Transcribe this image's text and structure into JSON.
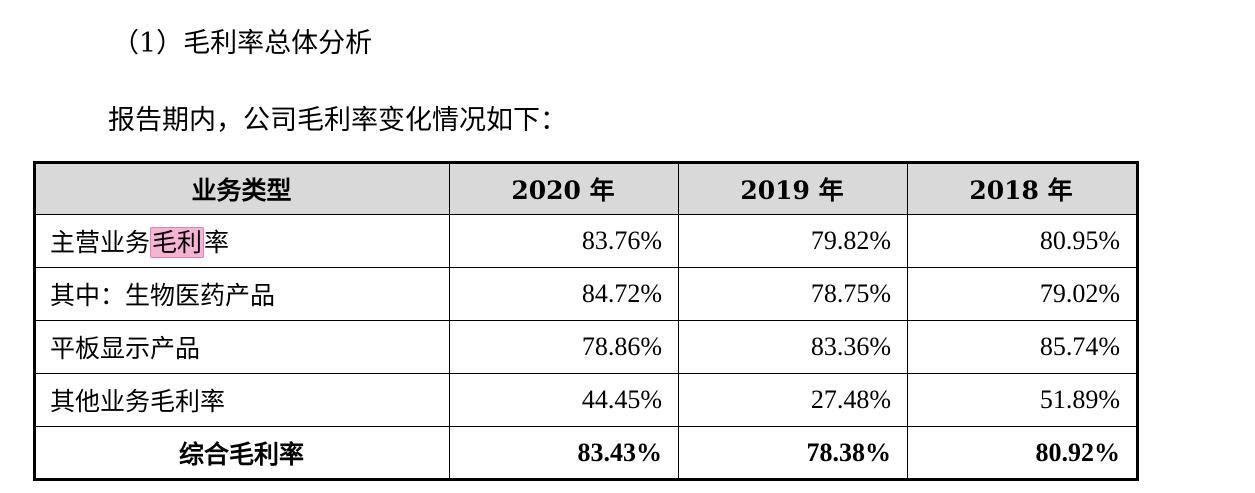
{
  "heading": "（1）毛利率总体分析",
  "intro": "报告期内，公司毛利率变化情况如下：",
  "table": {
    "headers": [
      "业务类型",
      "2020 年",
      "2019 年",
      "2018 年"
    ],
    "rows": [
      {
        "label_pre": "主营业务",
        "label_highlight": "毛利",
        "label_post": "率",
        "values": [
          "83.76%",
          "79.82%",
          "80.95%"
        ]
      },
      {
        "label": "其中：生物医药产品",
        "values": [
          "84.72%",
          "78.75%",
          "79.02%"
        ]
      },
      {
        "label": "平板显示产品",
        "values": [
          "78.86%",
          "83.36%",
          "85.74%"
        ]
      },
      {
        "label": "其他业务毛利率",
        "values": [
          "44.45%",
          "27.48%",
          "51.89%"
        ]
      },
      {
        "label": "综合毛利率",
        "values": [
          "83.43%",
          "78.38%",
          "80.92%"
        ]
      }
    ]
  },
  "colors": {
    "header_bg": "#d9d9d9",
    "highlight": "#f7b3d4",
    "border": "#000000"
  }
}
